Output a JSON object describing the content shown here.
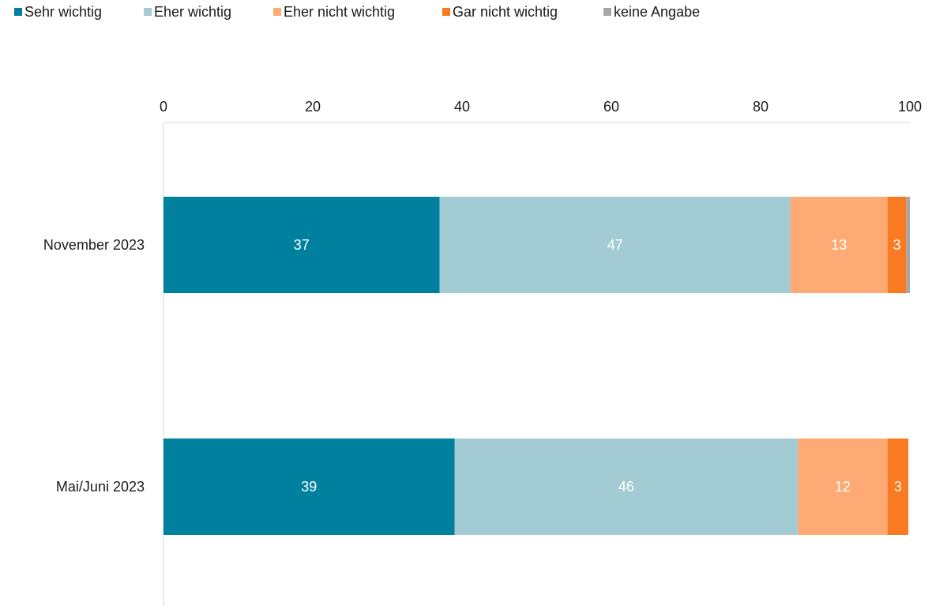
{
  "chart_data": {
    "type": "bar",
    "orientation": "horizontal",
    "stacked": true,
    "categories": [
      "November 2023",
      "Mai/Juni 2023"
    ],
    "series": [
      {
        "name": "Sehr wichtig",
        "color": "#00809f",
        "values": [
          37,
          39
        ],
        "labels": [
          "37",
          "39"
        ]
      },
      {
        "name": "Eher wichtig",
        "color": "#a3cbd4",
        "values": [
          47,
          46
        ],
        "labels": [
          "47",
          "46"
        ]
      },
      {
        "name": "Eher nicht wichtig",
        "color": "#fdaa74",
        "values": [
          13,
          12
        ],
        "labels": [
          "13",
          "12"
        ]
      },
      {
        "name": "Gar nicht wichtig",
        "color": "#f97a20",
        "values": [
          2.5,
          2.8
        ],
        "labels": [
          "3",
          "3"
        ]
      },
      {
        "name": "keine Angabe",
        "color": "#a6a6a6",
        "values": [
          0.5,
          0
        ],
        "labels": [
          "",
          ""
        ]
      }
    ],
    "xlim": [
      0,
      100
    ],
    "xticks": [
      0,
      20,
      40,
      60,
      80,
      100
    ],
    "xaxis_position": "top",
    "grid": false,
    "legend_position": "top-left"
  }
}
